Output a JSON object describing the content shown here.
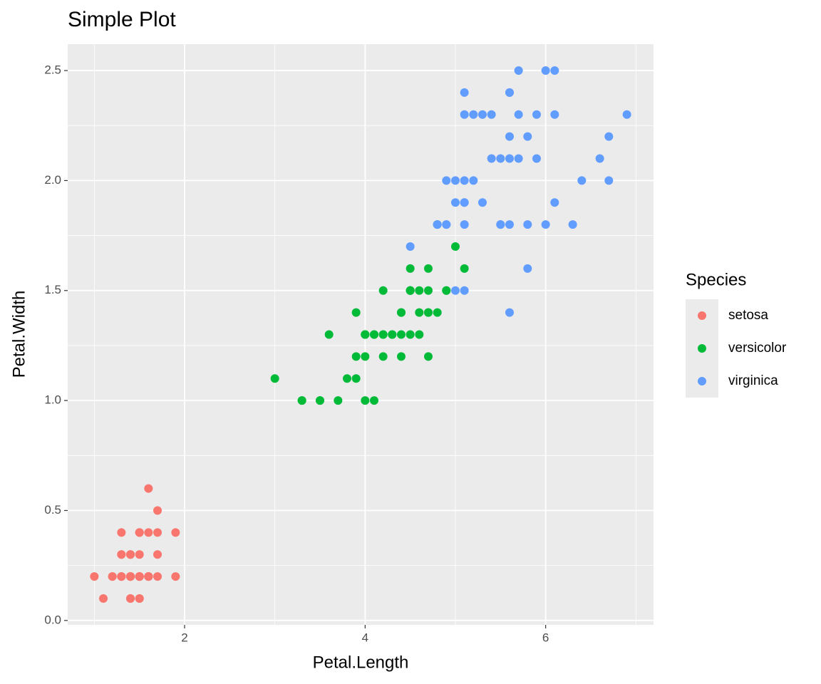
{
  "chart_data": {
    "type": "scatter",
    "title": "Simple Plot",
    "x_label": "Petal.Length",
    "y_label": "Petal.Width",
    "legend_title": "Species",
    "legend_position": "right",
    "grid": true,
    "xlim": [
      0.705,
      7.195
    ],
    "ylim": [
      -0.02,
      2.62
    ],
    "xticks": [
      2,
      4,
      6
    ],
    "yticks": [
      {
        "value": 0,
        "label": "0.0"
      },
      0.5,
      {
        "value": 1,
        "label": "1.0"
      },
      1.5,
      {
        "value": 2,
        "label": "2.0"
      },
      2.5
    ],
    "x_minor_ticks": [
      1,
      3,
      5,
      7
    ],
    "y_minor_ticks": [
      0.25,
      0.75,
      1.25,
      1.75,
      2.25
    ],
    "series": [
      {
        "name": "setosa",
        "color": "#F8766D",
        "x": [
          1.4,
          1.4,
          1.3,
          1.5,
          1.4,
          1.7,
          1.4,
          1.5,
          1.4,
          1.5,
          1.5,
          1.6,
          1.4,
          1.1,
          1.2,
          1.5,
          1.3,
          1.4,
          1.7,
          1.5,
          1.7,
          1.5,
          1.0,
          1.7,
          1.9,
          1.6,
          1.6,
          1.5,
          1.4,
          1.6,
          1.6,
          1.5,
          1.5,
          1.4,
          1.5,
          1.2,
          1.3,
          1.4,
          1.3,
          1.5,
          1.3,
          1.3,
          1.3,
          1.6,
          1.9,
          1.4,
          1.6,
          1.4,
          1.5,
          1.4
        ],
        "values": [
          0.2,
          0.2,
          0.2,
          0.2,
          0.2,
          0.4,
          0.3,
          0.2,
          0.2,
          0.1,
          0.2,
          0.2,
          0.1,
          0.1,
          0.2,
          0.4,
          0.4,
          0.3,
          0.3,
          0.3,
          0.2,
          0.4,
          0.2,
          0.5,
          0.2,
          0.2,
          0.4,
          0.2,
          0.2,
          0.2,
          0.2,
          0.4,
          0.1,
          0.2,
          0.2,
          0.2,
          0.2,
          0.1,
          0.2,
          0.2,
          0.3,
          0.3,
          0.2,
          0.6,
          0.4,
          0.3,
          0.2,
          0.2,
          0.2,
          0.2
        ]
      },
      {
        "name": "versicolor",
        "color": "#00BA38",
        "x": [
          4.7,
          4.5,
          4.9,
          4.0,
          4.6,
          4.5,
          4.7,
          3.3,
          4.6,
          3.9,
          3.5,
          4.2,
          4.0,
          4.7,
          3.6,
          4.4,
          4.5,
          4.1,
          4.5,
          3.9,
          4.8,
          4.0,
          4.9,
          4.7,
          4.3,
          4.4,
          4.8,
          5.0,
          4.5,
          3.5,
          3.8,
          3.7,
          3.9,
          5.1,
          4.5,
          4.5,
          4.7,
          4.4,
          4.1,
          4.0,
          4.4,
          4.6,
          4.0,
          3.3,
          4.2,
          4.2,
          4.2,
          4.3,
          3.0,
          4.1
        ],
        "values": [
          1.4,
          1.5,
          1.5,
          1.3,
          1.5,
          1.3,
          1.6,
          1.0,
          1.3,
          1.4,
          1.0,
          1.5,
          1.0,
          1.4,
          1.3,
          1.4,
          1.5,
          1.0,
          1.5,
          1.1,
          1.8,
          1.3,
          1.5,
          1.2,
          1.3,
          1.4,
          1.4,
          1.7,
          1.5,
          1.0,
          1.1,
          1.0,
          1.2,
          1.6,
          1.5,
          1.6,
          1.5,
          1.3,
          1.3,
          1.3,
          1.2,
          1.4,
          1.2,
          1.0,
          1.3,
          1.2,
          1.3,
          1.3,
          1.1,
          1.3
        ]
      },
      {
        "name": "virginica",
        "color": "#619CFF",
        "x": [
          6.0,
          5.1,
          5.9,
          5.6,
          5.8,
          6.6,
          4.5,
          6.3,
          5.8,
          6.1,
          5.1,
          5.3,
          5.5,
          5.0,
          5.1,
          5.3,
          5.5,
          6.7,
          6.9,
          5.0,
          5.7,
          4.9,
          6.7,
          4.9,
          5.7,
          6.0,
          4.8,
          4.9,
          5.6,
          5.8,
          6.1,
          6.4,
          5.6,
          5.1,
          5.6,
          6.1,
          5.6,
          5.5,
          4.8,
          5.4,
          5.6,
          5.1,
          5.1,
          5.9,
          5.7,
          5.2,
          5.0,
          5.2,
          5.4,
          5.1
        ],
        "values": [
          2.5,
          1.9,
          2.1,
          1.8,
          2.2,
          2.1,
          1.7,
          1.8,
          1.8,
          2.5,
          2.0,
          1.9,
          2.1,
          2.0,
          2.4,
          2.3,
          1.8,
          2.2,
          2.3,
          1.5,
          2.3,
          2.0,
          2.0,
          1.8,
          2.1,
          1.8,
          1.8,
          1.8,
          2.1,
          1.6,
          1.9,
          2.0,
          2.2,
          1.5,
          1.4,
          2.3,
          2.4,
          1.8,
          1.8,
          2.1,
          2.4,
          2.3,
          1.9,
          2.3,
          2.5,
          2.3,
          1.9,
          2.0,
          2.3,
          1.8
        ]
      }
    ]
  }
}
